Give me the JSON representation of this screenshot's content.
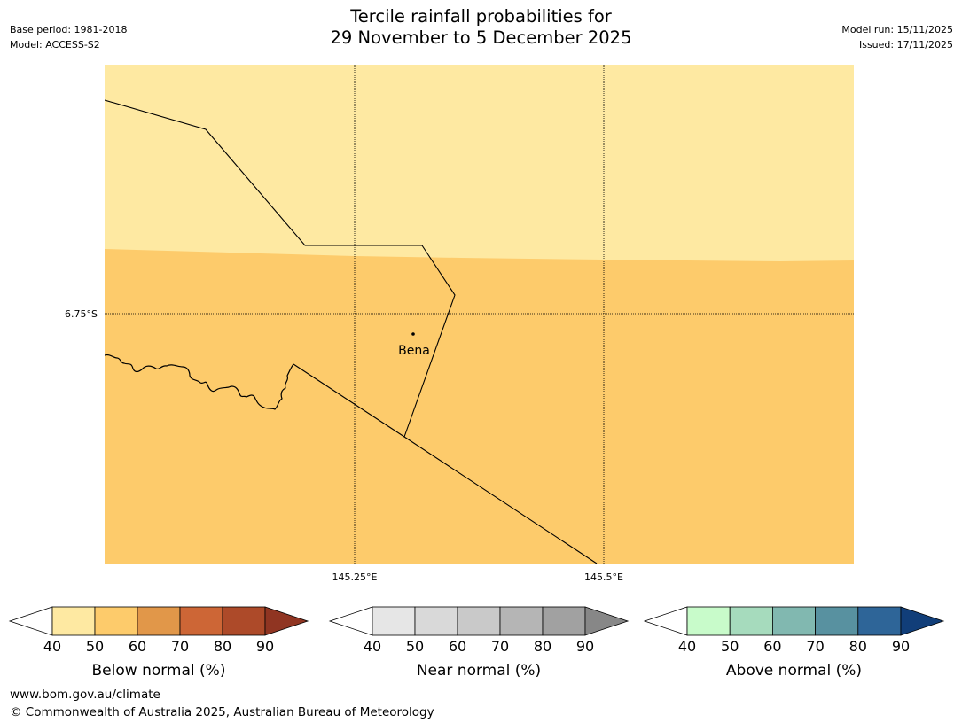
{
  "header": {
    "title_line1": "Tercile rainfall probabilities for",
    "title_line2": "29 November to 5 December 2025",
    "base_period": "Base period: 1981-2018",
    "model": "Model: ACCESS-S2",
    "model_run": "Model run: 15/11/2025",
    "issued": "Issued: 17/11/2025"
  },
  "map": {
    "lat_label": "6.75°S",
    "lon_labels": [
      "145.25°E",
      "145.5°E"
    ],
    "place_label": "Bena",
    "colors": {
      "below_40_50": "#fee9a2",
      "below_50_60": "#fdcb6b",
      "grid": "#000000"
    }
  },
  "colorbars": [
    {
      "label": "Below normal (%)",
      "ticks": [
        "40",
        "50",
        "60",
        "70",
        "80",
        "90"
      ],
      "colors": [
        "#ffffff",
        "#fee9a2",
        "#fdcb6b",
        "#e19749",
        "#cd6636",
        "#ad4a29",
        "#903522"
      ]
    },
    {
      "label": "Near normal (%)",
      "ticks": [
        "40",
        "50",
        "60",
        "70",
        "80",
        "90"
      ],
      "colors": [
        "#ffffff",
        "#e6e6e6",
        "#d9d9d9",
        "#c9c9c9",
        "#b5b5b5",
        "#a1a1a1",
        "#878787"
      ]
    },
    {
      "label": "Above normal (%)",
      "ticks": [
        "40",
        "50",
        "60",
        "70",
        "80",
        "90"
      ],
      "colors": [
        "#ffffff",
        "#c8fbca",
        "#a6dbbd",
        "#81b8b0",
        "#5891a0",
        "#2e6598",
        "#113e79"
      ]
    }
  ],
  "footer": {
    "url": "www.bom.gov.au/climate",
    "copyright": "© Commonwealth of Australia 2025, Australian Bureau of Meteorology"
  }
}
